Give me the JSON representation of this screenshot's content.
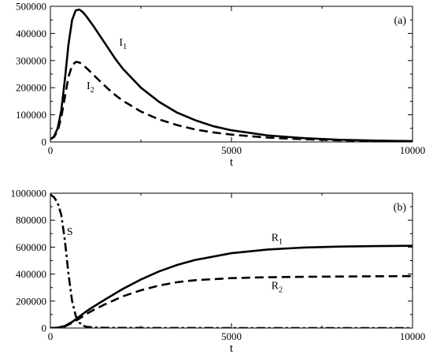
{
  "chart_data": [
    {
      "type": "line",
      "panel": "(a)",
      "xlabel": "t",
      "ylabel": "",
      "xlim": [
        0,
        10000
      ],
      "ylim": [
        0,
        500000
      ],
      "x_ticks": [
        "0",
        "5000",
        "10000"
      ],
      "y_ticks": [
        "0",
        "100000",
        "200000",
        "300000",
        "400000",
        "500000"
      ],
      "series": [
        {
          "name": "I",
          "subscript": "1",
          "style": "solid",
          "x": [
            0,
            100,
            200,
            300,
            400,
            500,
            600,
            700,
            800,
            900,
            1000,
            1200,
            1400,
            1600,
            1800,
            2000,
            2500,
            3000,
            3500,
            4000,
            4500,
            5000,
            6000,
            7000,
            8000,
            9000,
            10000
          ],
          "y": [
            10000,
            20000,
            50000,
            115000,
            230000,
            360000,
            450000,
            485000,
            488000,
            478000,
            462000,
            425000,
            385000,
            345000,
            305000,
            270000,
            200000,
            148000,
            108000,
            80000,
            58000,
            43000,
            24000,
            14000,
            8000,
            5000,
            3000
          ]
        },
        {
          "name": "I",
          "subscript": "2",
          "style": "dashed",
          "x": [
            0,
            100,
            200,
            300,
            400,
            500,
            600,
            700,
            800,
            900,
            1000,
            1200,
            1400,
            1600,
            1800,
            2000,
            2500,
            3000,
            3500,
            4000,
            4500,
            5000,
            6000,
            7000,
            8000,
            9000,
            10000
          ],
          "y": [
            10000,
            18000,
            40000,
            90000,
            165000,
            240000,
            282000,
            295000,
            293000,
            284000,
            272000,
            246000,
            220000,
            195000,
            172000,
            152000,
            112000,
            83000,
            62000,
            46000,
            35000,
            27000,
            16000,
            10000,
            6000,
            4000,
            2500
          ]
        }
      ],
      "labels": [
        {
          "text": "I",
          "sub": "1",
          "x": 1900,
          "y": 355000
        },
        {
          "text": "I",
          "sub": "2",
          "x": 1000,
          "y": 195000
        }
      ]
    },
    {
      "type": "line",
      "panel": "(b)",
      "xlabel": "t",
      "ylabel": "",
      "xlim": [
        0,
        10000
      ],
      "ylim": [
        0,
        1000000
      ],
      "x_ticks": [
        "0",
        "5000",
        "10000"
      ],
      "y_ticks": [
        "0",
        "200000",
        "400000",
        "600000",
        "800000",
        "1000000"
      ],
      "series": [
        {
          "name": "S",
          "subscript": "",
          "style": "dashdot",
          "x": [
            0,
            100,
            200,
            300,
            400,
            500,
            600,
            700,
            800,
            900,
            1000,
            1200,
            1500,
            2000,
            3000,
            5000,
            10000
          ],
          "y": [
            990000,
            970000,
            930000,
            840000,
            650000,
            400000,
            200000,
            90000,
            40000,
            18000,
            9000,
            4000,
            2000,
            1000,
            500,
            0,
            0
          ]
        },
        {
          "name": "R",
          "subscript": "1",
          "style": "solid",
          "x": [
            0,
            200,
            400,
            600,
            800,
            1000,
            1200,
            1500,
            2000,
            2500,
            3000,
            3500,
            4000,
            5000,
            6000,
            7000,
            8000,
            9000,
            10000
          ],
          "y": [
            0,
            3000,
            15000,
            45000,
            85000,
            125000,
            160000,
            210000,
            290000,
            360000,
            420000,
            468000,
            505000,
            555000,
            582000,
            597000,
            604000,
            608000,
            610000
          ]
        },
        {
          "name": "R",
          "subscript": "2",
          "style": "dashed",
          "x": [
            0,
            200,
            400,
            600,
            800,
            1000,
            1200,
            1500,
            2000,
            2500,
            3000,
            3500,
            4000,
            5000,
            6000,
            7000,
            8000,
            9000,
            10000
          ],
          "y": [
            0,
            2500,
            12000,
            38000,
            70000,
            105000,
            135000,
            175000,
            235000,
            280000,
            315000,
            340000,
            355000,
            370000,
            377000,
            380000,
            382000,
            384000,
            385000
          ]
        }
      ],
      "labels": [
        {
          "text": "S",
          "sub": "",
          "x": 450,
          "y": 690000
        },
        {
          "text": "R",
          "sub": "1",
          "x": 6100,
          "y": 645000
        },
        {
          "text": "R",
          "sub": "2",
          "x": 6100,
          "y": 290000
        }
      ]
    }
  ]
}
